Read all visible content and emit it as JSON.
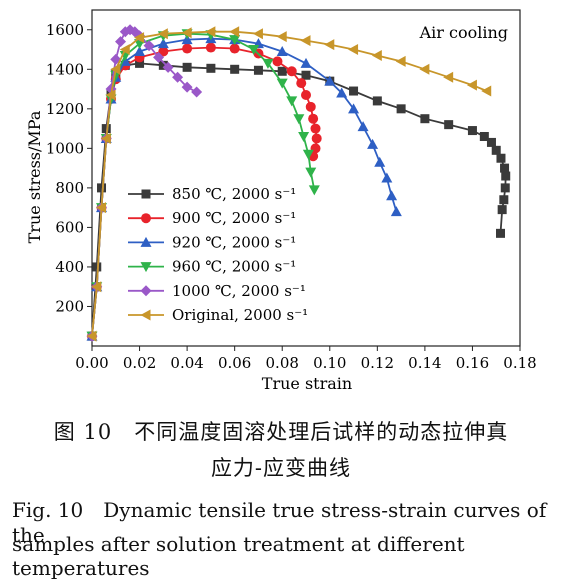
{
  "chart_data": {
    "type": "line",
    "annotation": "Air cooling",
    "xlabel": "True strain",
    "ylabel": "True stress/MPa",
    "xlim": [
      0.0,
      0.18
    ],
    "ylim": [
      0,
      1700
    ],
    "xticks": [
      0.0,
      0.02,
      0.04,
      0.06,
      0.08,
      0.1,
      0.12,
      0.14,
      0.16,
      0.18
    ],
    "xtick_labels": [
      "0.00",
      "0.02",
      "0.04",
      "0.06",
      "0.08",
      "0.10",
      "0.12",
      "0.14",
      "0.16",
      "0.18"
    ],
    "yticks": [
      200,
      400,
      600,
      800,
      1000,
      1200,
      1400,
      1600
    ],
    "yticklabels": [
      "200",
      "400",
      "600",
      "800",
      "1000",
      "1200",
      "1400",
      "1600"
    ],
    "legend_position": "lower-left",
    "series": [
      {
        "name": "850 ℃, 2000 s⁻¹",
        "color": "#3a3a3a",
        "marker": "square",
        "x": [
          0.0,
          0.002,
          0.004,
          0.006,
          0.008,
          0.01,
          0.014,
          0.02,
          0.03,
          0.04,
          0.05,
          0.06,
          0.07,
          0.08,
          0.09,
          0.1,
          0.11,
          0.12,
          0.13,
          0.14,
          0.15,
          0.16,
          0.165,
          0.168,
          0.17,
          0.172,
          0.1735,
          0.174,
          0.1738,
          0.1732,
          0.1725,
          0.1718
        ],
        "y": [
          50,
          400,
          800,
          1100,
          1280,
          1380,
          1420,
          1430,
          1420,
          1410,
          1405,
          1400,
          1395,
          1390,
          1370,
          1340,
          1290,
          1240,
          1200,
          1150,
          1120,
          1090,
          1060,
          1030,
          990,
          950,
          900,
          860,
          800,
          740,
          690,
          570
        ]
      },
      {
        "name": "900 ℃, 2000 s⁻¹",
        "color": "#e8232b",
        "marker": "circle",
        "x": [
          0.0,
          0.002,
          0.004,
          0.006,
          0.008,
          0.01,
          0.014,
          0.02,
          0.03,
          0.04,
          0.05,
          0.06,
          0.07,
          0.078,
          0.084,
          0.088,
          0.09,
          0.092,
          0.093,
          0.094,
          0.0945,
          0.094,
          0.093
        ],
        "y": [
          50,
          300,
          700,
          1050,
          1250,
          1350,
          1420,
          1460,
          1490,
          1505,
          1510,
          1505,
          1480,
          1440,
          1390,
          1330,
          1270,
          1210,
          1150,
          1100,
          1050,
          1000,
          960
        ]
      },
      {
        "name": "920 ℃, 2000 s⁻¹",
        "color": "#2e5fc4",
        "marker": "triangle-up",
        "x": [
          0.0,
          0.002,
          0.004,
          0.006,
          0.008,
          0.01,
          0.014,
          0.02,
          0.03,
          0.04,
          0.05,
          0.06,
          0.07,
          0.08,
          0.09,
          0.1,
          0.105,
          0.11,
          0.114,
          0.118,
          0.121,
          0.124,
          0.126,
          0.128
        ],
        "y": [
          50,
          300,
          700,
          1050,
          1250,
          1360,
          1440,
          1490,
          1530,
          1550,
          1555,
          1550,
          1530,
          1490,
          1430,
          1340,
          1280,
          1200,
          1110,
          1020,
          930,
          850,
          760,
          680
        ]
      },
      {
        "name": "960 ℃, 2000 s⁻¹",
        "color": "#2fb34a",
        "marker": "triangle-down",
        "x": [
          0.0,
          0.002,
          0.004,
          0.006,
          0.008,
          0.01,
          0.014,
          0.02,
          0.03,
          0.04,
          0.05,
          0.06,
          0.068,
          0.074,
          0.08,
          0.084,
          0.087,
          0.089,
          0.091,
          0.092,
          0.0935
        ],
        "y": [
          50,
          300,
          700,
          1050,
          1250,
          1370,
          1470,
          1530,
          1570,
          1580,
          1575,
          1550,
          1500,
          1430,
          1330,
          1240,
          1150,
          1060,
          970,
          880,
          790
        ]
      },
      {
        "name": "1000 ℃, 2000 s⁻¹",
        "color": "#9a58c8",
        "marker": "diamond",
        "x": [
          0.0,
          0.002,
          0.004,
          0.006,
          0.008,
          0.01,
          0.012,
          0.014,
          0.016,
          0.018,
          0.02,
          0.024,
          0.028,
          0.032,
          0.036,
          0.04,
          0.044
        ],
        "y": [
          50,
          300,
          700,
          1050,
          1300,
          1450,
          1540,
          1590,
          1600,
          1590,
          1570,
          1520,
          1460,
          1410,
          1360,
          1310,
          1285
        ]
      },
      {
        "name": "Original, 2000 s⁻¹",
        "color": "#c8962a",
        "marker": "triangle-left",
        "x": [
          0.0,
          0.002,
          0.004,
          0.006,
          0.008,
          0.01,
          0.014,
          0.02,
          0.03,
          0.04,
          0.05,
          0.06,
          0.07,
          0.08,
          0.09,
          0.1,
          0.11,
          0.12,
          0.13,
          0.14,
          0.15,
          0.16,
          0.166
        ],
        "y": [
          50,
          300,
          700,
          1050,
          1270,
          1400,
          1500,
          1560,
          1580,
          1585,
          1590,
          1590,
          1580,
          1565,
          1545,
          1525,
          1500,
          1470,
          1440,
          1400,
          1360,
          1320,
          1290
        ]
      }
    ]
  },
  "caption": {
    "cn_line1": "图 10　不同温度固溶处理后试样的动态拉伸真",
    "cn_line2": "应力-应变曲线",
    "en_line1": "Fig. 10　Dynamic tensile true stress-strain curves of the",
    "en_line2": "samples after solution treatment at different temperatures"
  }
}
